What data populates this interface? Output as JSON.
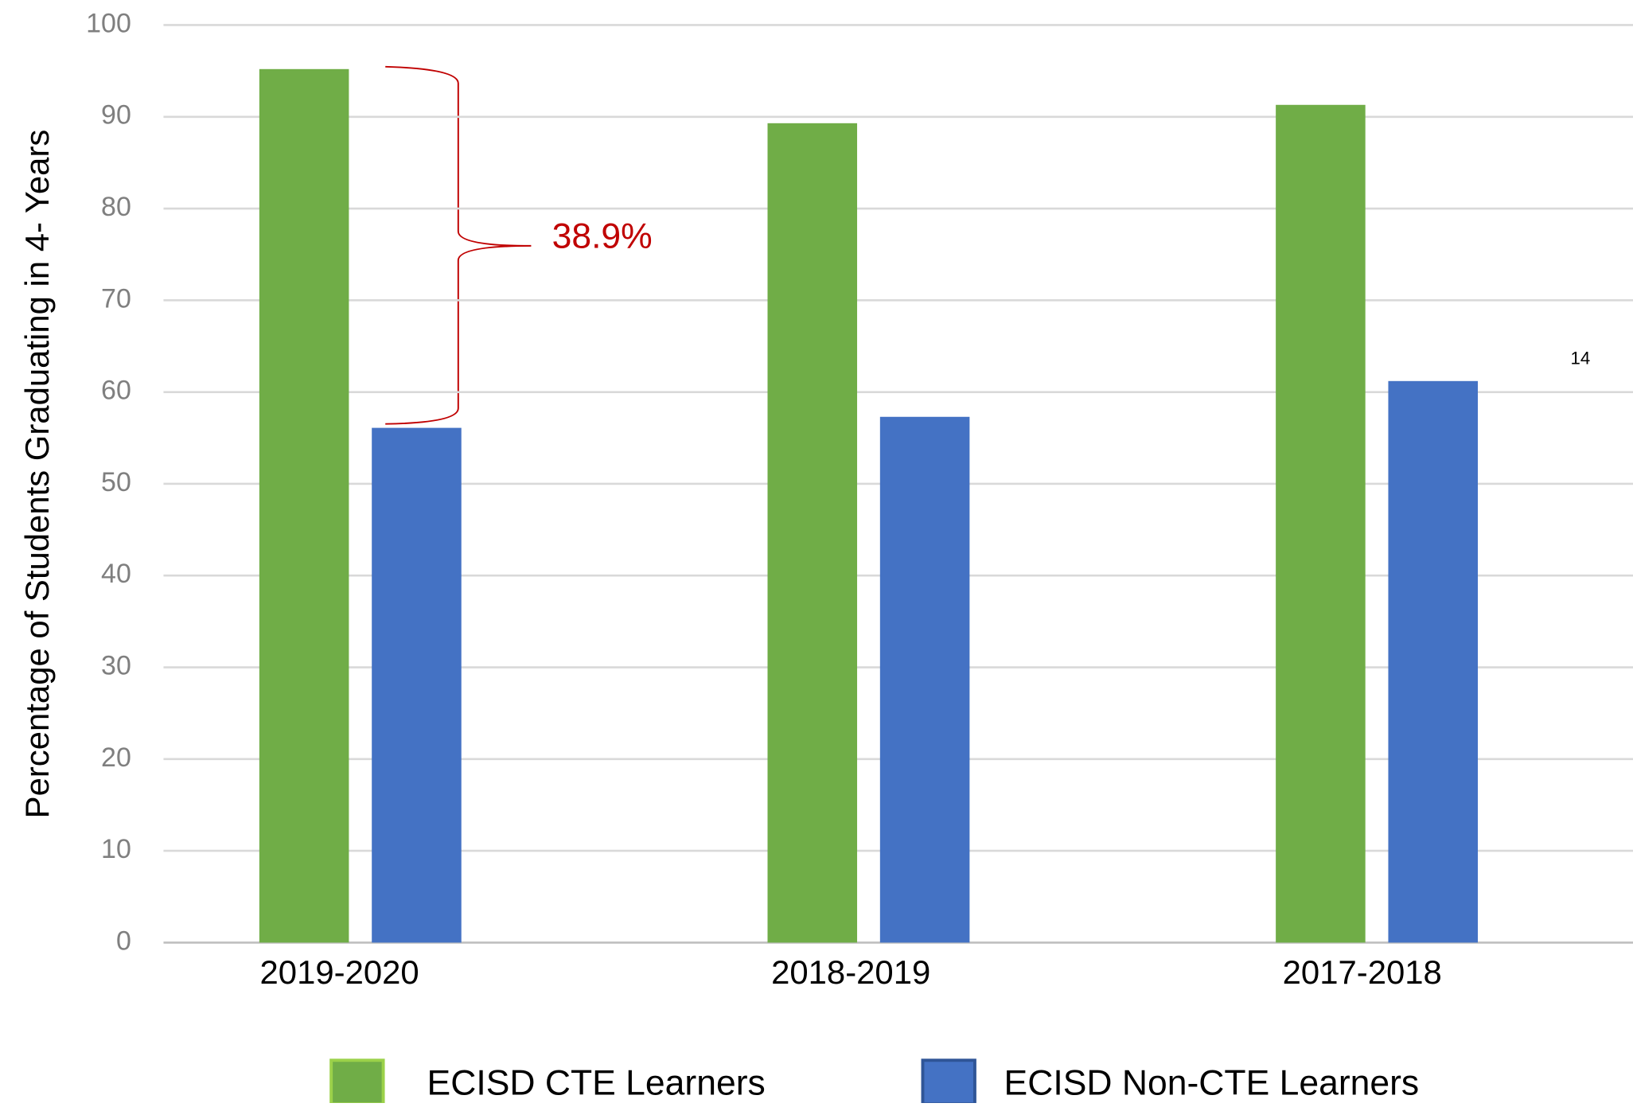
{
  "chart_data": {
    "type": "bar",
    "ylabel": "Percentage of Students Graduating in 4- Years",
    "categories": [
      "2019-2020",
      "2018-2019",
      "2017-2018"
    ],
    "series": [
      {
        "name": "ECISD CTE Learners",
        "color": "#70ad47",
        "values": [
          95.2,
          89.3,
          91.3
        ]
      },
      {
        "name": "ECISD Non-CTE Learners",
        "color": "#4472c4",
        "values": [
          56.1,
          57.3,
          61.2
        ]
      }
    ],
    "ylim": [
      0,
      100
    ],
    "yticks": [
      0,
      10,
      20,
      30,
      40,
      50,
      60,
      70,
      80,
      90,
      100
    ],
    "grid": true,
    "legend": "bottom",
    "annotations": [
      "38.9%",
      "14"
    ]
  }
}
